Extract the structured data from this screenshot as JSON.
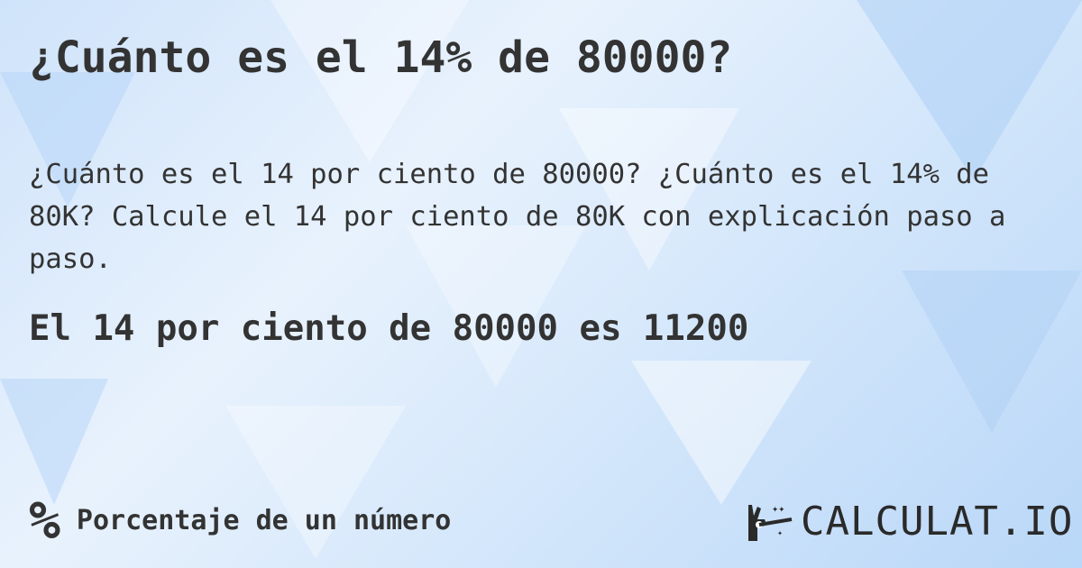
{
  "title": "¿Cuánto es el 14% de 80000?",
  "description": "¿Cuánto es el 14 por ciento de 80000? ¿Cuánto es el 14% de 80K? Calcule el 14 por ciento de 80K con explicación paso a paso.",
  "result": "El 14 por ciento de 80000 es 11200",
  "category": {
    "icon": "percent-icon",
    "symbol": "%",
    "label": "Porcentaje de un número"
  },
  "logo": {
    "text": "CALCULAT.IO",
    "icon": "magic-hand-wand-icon"
  },
  "colors": {
    "text": "#333333",
    "background": "#d6e8fb"
  }
}
